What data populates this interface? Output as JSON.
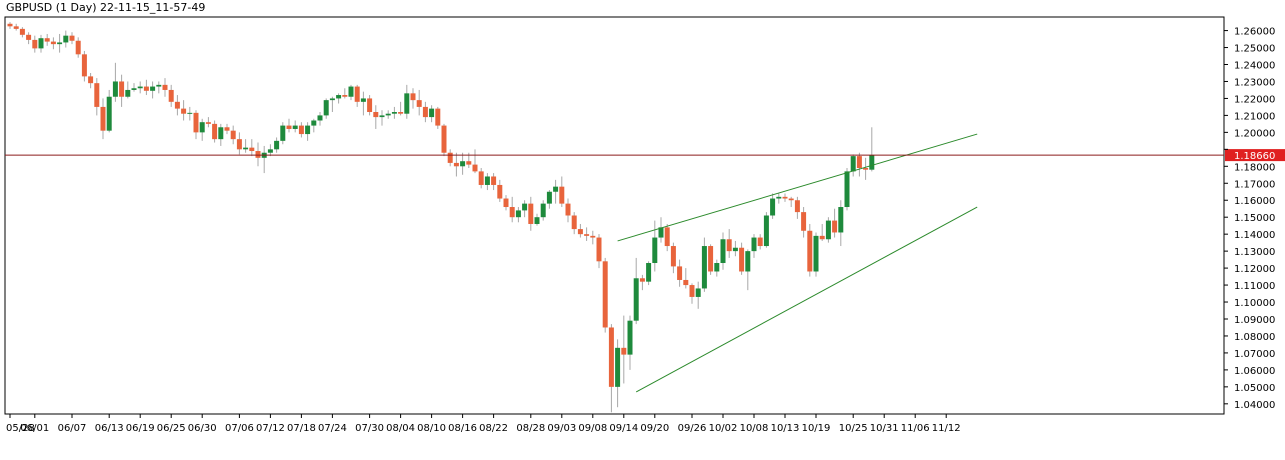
{
  "header": {
    "title": "GBPUSD (1 Day) 22-11-15_11-57-49"
  },
  "colors": {
    "bull": "#1e8a3c",
    "bear": "#e8643c",
    "wick": "#a8a8a8",
    "trendline": "#2b8a2b",
    "hline": "#8b1a1a",
    "badge": "#e02020",
    "axis": "#000000"
  },
  "chart_data": {
    "type": "candlestick",
    "symbol": "GBPUSD",
    "timeframe": "1 Day",
    "ylim": [
      1.034,
      1.268
    ],
    "y_ticks": [
      "1.26000",
      "1.25000",
      "1.24000",
      "1.23000",
      "1.22000",
      "1.21000",
      "1.20000",
      "1.19000",
      "1.18000",
      "1.17000",
      "1.16000",
      "1.15000",
      "1.14000",
      "1.13000",
      "1.12000",
      "1.11000",
      "1.10000",
      "1.09000",
      "1.08000",
      "1.07000",
      "1.06000",
      "1.05000",
      "1.04000"
    ],
    "x_ticks": [
      {
        "label": "05/28",
        "i": 0
      },
      {
        "label": "06/01",
        "i": 4
      },
      {
        "label": "06/07",
        "i": 10
      },
      {
        "label": "06/13",
        "i": 16
      },
      {
        "label": "06/19",
        "i": 21
      },
      {
        "label": "06/25",
        "i": 26
      },
      {
        "label": "06/30",
        "i": 31
      },
      {
        "label": "07/06",
        "i": 37
      },
      {
        "label": "07/12",
        "i": 42
      },
      {
        "label": "07/18",
        "i": 47
      },
      {
        "label": "07/24",
        "i": 52
      },
      {
        "label": "07/30",
        "i": 58
      },
      {
        "label": "08/04",
        "i": 63
      },
      {
        "label": "08/10",
        "i": 68
      },
      {
        "label": "08/16",
        "i": 73
      },
      {
        "label": "08/22",
        "i": 78
      },
      {
        "label": "08/28",
        "i": 84
      },
      {
        "label": "09/03",
        "i": 89
      },
      {
        "label": "09/08",
        "i": 94
      },
      {
        "label": "09/14",
        "i": 99
      },
      {
        "label": "09/20",
        "i": 104
      },
      {
        "label": "09/26",
        "i": 110
      },
      {
        "label": "10/02",
        "i": 115
      },
      {
        "label": "10/08",
        "i": 120
      },
      {
        "label": "10/13",
        "i": 125
      },
      {
        "label": "10/19",
        "i": 130
      },
      {
        "label": "10/25",
        "i": 136
      },
      {
        "label": "10/31",
        "i": 141
      },
      {
        "label": "11/06",
        "i": 146
      },
      {
        "label": "11/12",
        "i": 151
      }
    ],
    "candles": [
      [
        1.264,
        1.265,
        1.261,
        1.2625
      ],
      [
        1.2625,
        1.264,
        1.26,
        1.261
      ],
      [
        1.261,
        1.262,
        1.256,
        1.2575
      ],
      [
        1.2575,
        1.259,
        1.252,
        1.2545
      ],
      [
        1.2545,
        1.257,
        1.247,
        1.2495
      ],
      [
        1.2495,
        1.2575,
        1.247,
        1.2555
      ],
      [
        1.2555,
        1.258,
        1.251,
        1.2535
      ],
      [
        1.2535,
        1.256,
        1.249,
        1.252
      ],
      [
        1.252,
        1.258,
        1.247,
        1.253
      ],
      [
        1.253,
        1.26,
        1.25,
        1.257
      ],
      [
        1.257,
        1.259,
        1.252,
        1.254
      ],
      [
        1.254,
        1.256,
        1.244,
        1.246
      ],
      [
        1.246,
        1.248,
        1.23,
        1.233
      ],
      [
        1.233,
        1.235,
        1.226,
        1.229
      ],
      [
        1.229,
        1.232,
        1.21,
        1.215
      ],
      [
        1.215,
        1.22,
        1.196,
        1.201
      ],
      [
        1.201,
        1.225,
        1.2,
        1.221
      ],
      [
        1.221,
        1.241,
        1.218,
        1.23
      ],
      [
        1.23,
        1.234,
        1.215,
        1.221
      ],
      [
        1.221,
        1.23,
        1.22,
        1.225
      ],
      [
        1.225,
        1.229,
        1.224,
        1.226
      ],
      [
        1.226,
        1.23,
        1.223,
        1.227
      ],
      [
        1.227,
        1.231,
        1.222,
        1.2245
      ],
      [
        1.2245,
        1.23,
        1.22,
        1.227
      ],
      [
        1.227,
        1.23,
        1.223,
        1.228
      ],
      [
        1.228,
        1.232,
        1.221,
        1.225
      ],
      [
        1.225,
        1.228,
        1.215,
        1.218
      ],
      [
        1.218,
        1.222,
        1.21,
        1.214
      ],
      [
        1.214,
        1.219,
        1.207,
        1.211
      ],
      [
        1.211,
        1.215,
        1.207,
        1.2115
      ],
      [
        1.2115,
        1.213,
        1.196,
        1.2
      ],
      [
        1.2,
        1.208,
        1.195,
        1.206
      ],
      [
        1.206,
        1.209,
        1.203,
        1.205
      ],
      [
        1.205,
        1.207,
        1.194,
        1.196
      ],
      [
        1.196,
        1.205,
        1.192,
        1.203
      ],
      [
        1.203,
        1.205,
        1.199,
        1.201
      ],
      [
        1.201,
        1.204,
        1.193,
        1.196
      ],
      [
        1.196,
        1.2,
        1.187,
        1.19
      ],
      [
        1.19,
        1.196,
        1.188,
        1.191
      ],
      [
        1.191,
        1.196,
        1.186,
        1.189
      ],
      [
        1.189,
        1.194,
        1.18,
        1.185
      ],
      [
        1.185,
        1.192,
        1.176,
        1.188
      ],
      [
        1.188,
        1.193,
        1.186,
        1.19
      ],
      [
        1.19,
        1.197,
        1.188,
        1.195
      ],
      [
        1.195,
        1.206,
        1.193,
        1.204
      ],
      [
        1.204,
        1.208,
        1.2,
        1.202
      ],
      [
        1.202,
        1.207,
        1.2,
        1.204
      ],
      [
        1.204,
        1.206,
        1.197,
        1.199
      ],
      [
        1.199,
        1.206,
        1.195,
        1.204
      ],
      [
        1.204,
        1.208,
        1.2,
        1.207
      ],
      [
        1.207,
        1.212,
        1.204,
        1.21
      ],
      [
        1.21,
        1.22,
        1.208,
        1.219
      ],
      [
        1.219,
        1.221,
        1.212,
        1.22
      ],
      [
        1.22,
        1.223,
        1.217,
        1.222
      ],
      [
        1.222,
        1.226,
        1.22,
        1.221
      ],
      [
        1.221,
        1.228,
        1.219,
        1.227
      ],
      [
        1.227,
        1.228,
        1.215,
        1.218
      ],
      [
        1.218,
        1.224,
        1.21,
        1.22
      ],
      [
        1.22,
        1.222,
        1.21,
        1.212
      ],
      [
        1.212,
        1.216,
        1.202,
        1.209
      ],
      [
        1.209,
        1.213,
        1.204,
        1.21
      ],
      [
        1.21,
        1.213,
        1.208,
        1.211
      ],
      [
        1.211,
        1.215,
        1.208,
        1.212
      ],
      [
        1.212,
        1.218,
        1.21,
        1.211
      ],
      [
        1.211,
        1.228,
        1.208,
        1.223
      ],
      [
        1.223,
        1.226,
        1.214,
        1.219
      ],
      [
        1.219,
        1.225,
        1.21,
        1.215
      ],
      [
        1.215,
        1.218,
        1.206,
        1.209
      ],
      [
        1.209,
        1.216,
        1.206,
        1.214
      ],
      [
        1.214,
        1.215,
        1.202,
        1.204
      ],
      [
        1.204,
        1.205,
        1.186,
        1.188
      ],
      [
        1.188,
        1.19,
        1.18,
        1.182
      ],
      [
        1.182,
        1.188,
        1.174,
        1.18
      ],
      [
        1.18,
        1.188,
        1.175,
        1.183
      ],
      [
        1.183,
        1.188,
        1.179,
        1.181
      ],
      [
        1.181,
        1.19,
        1.176,
        1.177
      ],
      [
        1.177,
        1.179,
        1.167,
        1.169
      ],
      [
        1.169,
        1.176,
        1.166,
        1.174
      ],
      [
        1.174,
        1.176,
        1.166,
        1.169
      ],
      [
        1.169,
        1.172,
        1.159,
        1.161
      ],
      [
        1.161,
        1.163,
        1.154,
        1.156
      ],
      [
        1.156,
        1.162,
        1.147,
        1.15
      ],
      [
        1.15,
        1.156,
        1.147,
        1.154
      ],
      [
        1.154,
        1.16,
        1.15,
        1.158
      ],
      [
        1.158,
        1.162,
        1.142,
        1.146
      ],
      [
        1.146,
        1.152,
        1.145,
        1.15
      ],
      [
        1.15,
        1.16,
        1.148,
        1.158
      ],
      [
        1.158,
        1.166,
        1.155,
        1.165
      ],
      [
        1.165,
        1.172,
        1.158,
        1.168
      ],
      [
        1.168,
        1.174,
        1.156,
        1.158
      ],
      [
        1.158,
        1.161,
        1.147,
        1.151
      ],
      [
        1.151,
        1.153,
        1.14,
        1.143
      ],
      [
        1.143,
        1.146,
        1.138,
        1.14
      ],
      [
        1.14,
        1.144,
        1.136,
        1.139
      ],
      [
        1.139,
        1.142,
        1.134,
        1.138
      ],
      [
        1.138,
        1.14,
        1.12,
        1.124
      ],
      [
        1.124,
        1.126,
        1.082,
        1.085
      ],
      [
        1.085,
        1.087,
        1.035,
        1.05
      ],
      [
        1.05,
        1.078,
        1.038,
        1.073
      ],
      [
        1.073,
        1.092,
        1.052,
        1.069
      ],
      [
        1.069,
        1.092,
        1.06,
        1.089
      ],
      [
        1.089,
        1.126,
        1.087,
        1.114
      ],
      [
        1.114,
        1.116,
        1.107,
        1.112
      ],
      [
        1.112,
        1.124,
        1.11,
        1.123
      ],
      [
        1.123,
        1.148,
        1.118,
        1.138
      ],
      [
        1.138,
        1.15,
        1.135,
        1.144
      ],
      [
        1.144,
        1.146,
        1.13,
        1.133
      ],
      [
        1.133,
        1.135,
        1.117,
        1.121
      ],
      [
        1.121,
        1.125,
        1.109,
        1.113
      ],
      [
        1.113,
        1.12,
        1.108,
        1.11
      ],
      [
        1.11,
        1.111,
        1.099,
        1.103
      ],
      [
        1.103,
        1.112,
        1.096,
        1.108
      ],
      [
        1.108,
        1.138,
        1.106,
        1.133
      ],
      [
        1.133,
        1.134,
        1.116,
        1.118
      ],
      [
        1.118,
        1.125,
        1.115,
        1.123
      ],
      [
        1.123,
        1.141,
        1.119,
        1.137
      ],
      [
        1.137,
        1.143,
        1.126,
        1.13
      ],
      [
        1.13,
        1.136,
        1.127,
        1.132
      ],
      [
        1.132,
        1.135,
        1.116,
        1.118
      ],
      [
        1.118,
        1.131,
        1.107,
        1.13
      ],
      [
        1.13,
        1.14,
        1.126,
        1.138
      ],
      [
        1.138,
        1.14,
        1.131,
        1.133
      ],
      [
        1.133,
        1.153,
        1.132,
        1.151
      ],
      [
        1.151,
        1.164,
        1.149,
        1.161
      ],
      [
        1.161,
        1.164,
        1.158,
        1.162
      ],
      [
        1.162,
        1.164,
        1.159,
        1.161
      ],
      [
        1.161,
        1.162,
        1.156,
        1.16
      ],
      [
        1.16,
        1.162,
        1.149,
        1.153
      ],
      [
        1.153,
        1.156,
        1.138,
        1.142
      ],
      [
        1.142,
        1.146,
        1.115,
        1.118
      ],
      [
        1.118,
        1.141,
        1.115,
        1.139
      ],
      [
        1.139,
        1.146,
        1.136,
        1.137
      ],
      [
        1.137,
        1.15,
        1.135,
        1.148
      ],
      [
        1.148,
        1.155,
        1.138,
        1.141
      ],
      [
        1.141,
        1.16,
        1.133,
        1.156
      ],
      [
        1.156,
        1.179,
        1.154,
        1.177
      ],
      [
        1.177,
        1.187,
        1.174,
        1.186
      ],
      [
        1.186,
        1.188,
        1.174,
        1.179
      ],
      [
        1.179,
        1.185,
        1.172,
        1.178
      ],
      [
        1.178,
        1.203,
        1.177,
        1.1866
      ]
    ],
    "trendlines": [
      {
        "name": "upper",
        "x1": 1.136,
        "x2": 1.199,
        "from_i": 98,
        "to_i": 156
      },
      {
        "name": "lower",
        "x1": 1.047,
        "x2": 1.156,
        "from_i": 101,
        "to_i": 156
      }
    ],
    "current_price": "1.18660"
  }
}
